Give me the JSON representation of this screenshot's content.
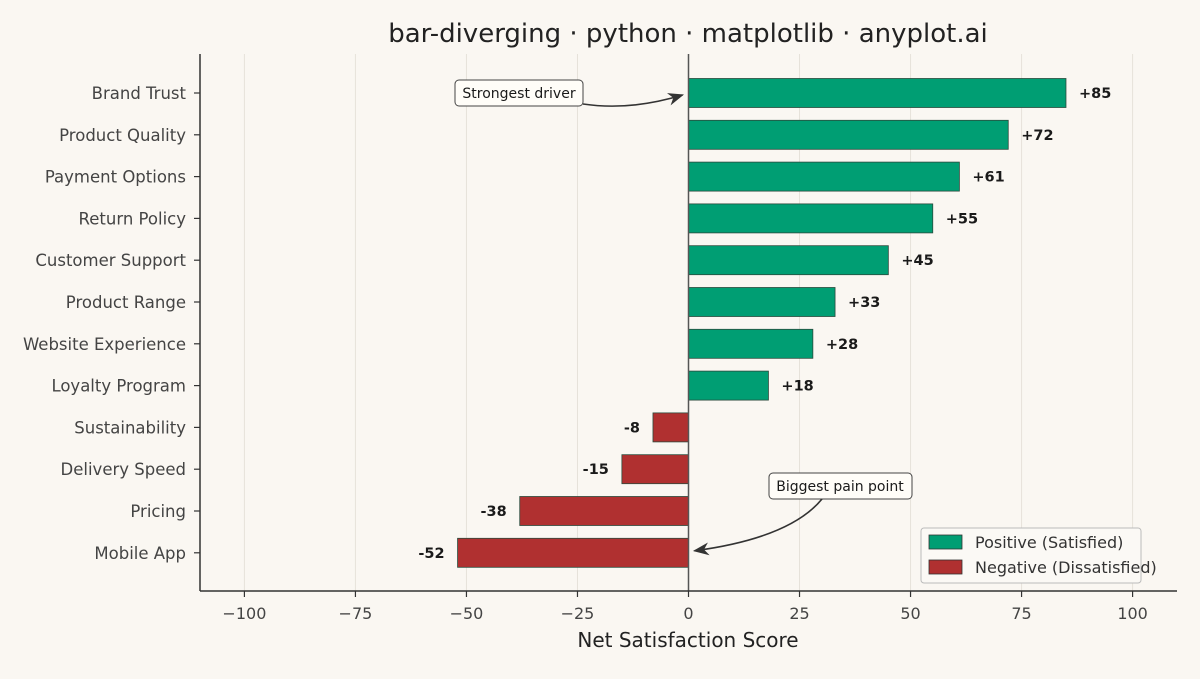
{
  "chart_data": {
    "type": "bar",
    "orientation": "horizontal",
    "title": "bar-diverging · python · matplotlib · anyplot.ai",
    "xlabel": "Net Satisfaction Score",
    "ylabel": "",
    "xlim": [
      -110,
      110
    ],
    "xticks": [
      -100,
      -75,
      -50,
      -25,
      0,
      25,
      50,
      75,
      100
    ],
    "xtick_labels": [
      "−100",
      "−75",
      "−50",
      "−25",
      "0",
      "25",
      "50",
      "75",
      "100"
    ],
    "grid": "vertical",
    "categories": [
      "Brand Trust",
      "Product Quality",
      "Payment Options",
      "Return Policy",
      "Customer Support",
      "Product Range",
      "Website Experience",
      "Loyalty Program",
      "Sustainability",
      "Delivery Speed",
      "Pricing",
      "Mobile App"
    ],
    "values": [
      85,
      72,
      61,
      55,
      45,
      33,
      28,
      18,
      -8,
      -15,
      -38,
      -52
    ],
    "value_labels": [
      "+85",
      "+72",
      "+61",
      "+55",
      "+45",
      "+33",
      "+28",
      "+18",
      "-8",
      "-15",
      "-38",
      "-52"
    ],
    "colors": {
      "positive": "#009e73",
      "negative": "#b03030",
      "axis": "#333333",
      "grid": "#e6e2da"
    },
    "legend": {
      "placement": "bottom-right",
      "entries": [
        {
          "label": "Positive (Satisfied)",
          "color": "#009e73"
        },
        {
          "label": "Negative (Dissatisfied)",
          "color": "#b03030"
        }
      ]
    },
    "annotations": [
      {
        "text": "Strongest driver",
        "target_category": "Brand Trust",
        "target_value": 0
      },
      {
        "text": "Biggest pain point",
        "target_category": "Mobile App",
        "target_value": 0
      }
    ]
  }
}
